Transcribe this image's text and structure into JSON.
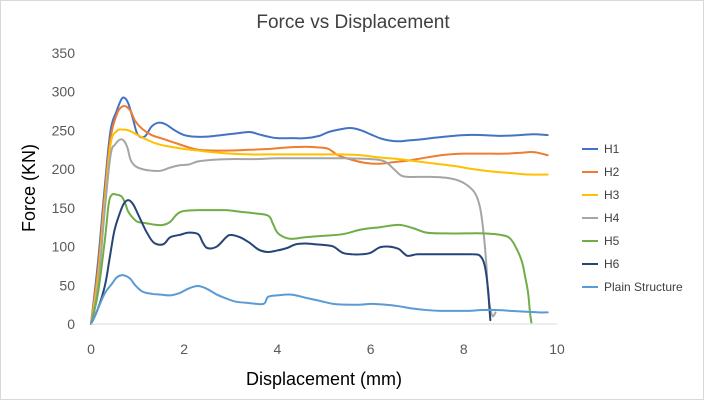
{
  "chart_data": {
    "type": "line",
    "title": "Force vs Displacement",
    "xlabel": "Displacement (mm)",
    "ylabel": "Force (KN)",
    "xlim": [
      0,
      10
    ],
    "ylim": [
      0,
      350
    ],
    "xticks": [
      0,
      2,
      4,
      6,
      8,
      10
    ],
    "yticks": [
      0,
      50,
      100,
      150,
      200,
      250,
      300,
      350
    ],
    "grid": false,
    "legend_position": "right",
    "series": [
      {
        "name": "H1",
        "color": "#4472C4",
        "x": [
          0,
          0.15,
          0.3,
          0.42,
          0.55,
          0.65,
          0.72,
          0.8,
          0.9,
          1.0,
          1.15,
          1.3,
          1.45,
          1.6,
          1.8,
          2.0,
          2.2,
          2.5,
          2.8,
          3.1,
          3.4,
          3.6,
          3.8,
          4.0,
          4.3,
          4.6,
          4.9,
          5.1,
          5.4,
          5.6,
          5.8,
          6.0,
          6.2,
          6.4,
          6.6,
          6.8,
          7.0,
          7.3,
          7.6,
          8.0,
          8.4,
          8.8,
          9.2,
          9.5,
          9.8
        ],
        "y": [
          0,
          80,
          180,
          250,
          275,
          290,
          292,
          285,
          265,
          245,
          242,
          255,
          260,
          258,
          250,
          244,
          242,
          242,
          244,
          246,
          248,
          245,
          242,
          240,
          240,
          240,
          243,
          248,
          252,
          253,
          250,
          245,
          240,
          237,
          236,
          237,
          238,
          240,
          242,
          244,
          244,
          243,
          244,
          245,
          244
        ]
      },
      {
        "name": "H2",
        "color": "#ED7D31",
        "x": [
          0,
          0.15,
          0.3,
          0.42,
          0.55,
          0.65,
          0.75,
          0.85,
          0.95,
          1.1,
          1.3,
          1.5,
          1.7,
          1.9,
          2.1,
          2.3,
          2.6,
          3.0,
          3.4,
          3.8,
          4.2,
          4.6,
          4.9,
          5.1,
          5.3,
          5.6,
          5.9,
          6.2,
          6.5,
          6.8,
          7.1,
          7.4,
          7.7,
          8.0,
          8.3,
          8.6,
          8.9,
          9.2,
          9.5,
          9.8
        ],
        "y": [
          0,
          70,
          170,
          240,
          270,
          280,
          281,
          275,
          262,
          252,
          244,
          240,
          236,
          232,
          228,
          225,
          224,
          224,
          225,
          226,
          228,
          229,
          228,
          226,
          218,
          212,
          208,
          207,
          209,
          211,
          214,
          217,
          219,
          220,
          220,
          220,
          220,
          221,
          222,
          218
        ]
      },
      {
        "name": "H3",
        "color": "#FFC000",
        "x": [
          0,
          0.15,
          0.3,
          0.42,
          0.55,
          0.7,
          0.85,
          1.0,
          1.2,
          1.4,
          1.6,
          1.8,
          2.0,
          2.3,
          2.6,
          3.0,
          3.4,
          3.8,
          4.2,
          4.6,
          5.0,
          5.4,
          5.8,
          6.2,
          6.6,
          7.0,
          7.4,
          7.8,
          8.2,
          8.6,
          9.0,
          9.4,
          9.8
        ],
        "y": [
          0,
          60,
          160,
          232,
          249,
          251,
          249,
          244,
          238,
          233,
          230,
          228,
          226,
          224,
          222,
          220,
          219,
          219,
          219,
          219,
          219,
          219,
          218,
          215,
          213,
          210,
          207,
          204,
          200,
          197,
          195,
          193,
          193
        ]
      },
      {
        "name": "H4",
        "color": "#A5A5A5",
        "x": [
          0,
          0.15,
          0.3,
          0.42,
          0.52,
          0.62,
          0.7,
          0.78,
          0.85,
          0.95,
          1.1,
          1.3,
          1.5,
          1.7,
          1.9,
          2.1,
          2.3,
          2.6,
          3.0,
          3.5,
          4.0,
          4.5,
          5.0,
          5.5,
          6.0,
          6.3,
          6.5,
          6.65,
          6.8,
          7.0,
          7.3,
          7.6,
          7.9,
          8.1,
          8.25,
          8.35,
          8.42,
          8.48,
          8.52,
          8.57,
          8.62,
          8.68
        ],
        "y": [
          0,
          50,
          150,
          218,
          232,
          238,
          237,
          228,
          212,
          204,
          200,
          198,
          198,
          202,
          205,
          206,
          210,
          212,
          213,
          213,
          214,
          214,
          214,
          214,
          213,
          210,
          200,
          192,
          190,
          190,
          190,
          189,
          185,
          178,
          168,
          150,
          120,
          80,
          40,
          20,
          10,
          15
        ]
      },
      {
        "name": "H5",
        "color": "#70AD47",
        "x": [
          0,
          0.15,
          0.3,
          0.38,
          0.45,
          0.55,
          0.65,
          0.72,
          0.8,
          0.9,
          1.0,
          1.2,
          1.4,
          1.55,
          1.7,
          1.85,
          2.0,
          2.3,
          2.6,
          2.9,
          3.2,
          3.5,
          3.8,
          3.9,
          4.0,
          4.15,
          4.3,
          4.6,
          5.0,
          5.4,
          5.8,
          6.2,
          6.6,
          6.9,
          7.2,
          7.6,
          8.0,
          8.4,
          8.8,
          9.0,
          9.15,
          9.25,
          9.32,
          9.38,
          9.42,
          9.45
        ],
        "y": [
          0,
          40,
          110,
          155,
          167,
          167,
          165,
          158,
          145,
          137,
          132,
          130,
          128,
          128,
          132,
          142,
          146,
          147,
          147,
          147,
          145,
          143,
          140,
          130,
          118,
          112,
          110,
          112,
          114,
          116,
          122,
          125,
          128,
          124,
          118,
          117,
          117,
          117,
          115,
          110,
          95,
          80,
          60,
          40,
          15,
          2
        ]
      },
      {
        "name": "H6",
        "color": "#264478",
        "x": [
          0,
          0.15,
          0.3,
          0.4,
          0.5,
          0.6,
          0.7,
          0.8,
          0.9,
          1.0,
          1.1,
          1.2,
          1.35,
          1.55,
          1.7,
          1.9,
          2.1,
          2.3,
          2.4,
          2.5,
          2.7,
          2.9,
          3.0,
          3.2,
          3.4,
          3.6,
          3.8,
          4.0,
          4.2,
          4.4,
          4.6,
          4.8,
          5.0,
          5.2,
          5.4,
          5.6,
          5.8,
          6.0,
          6.2,
          6.4,
          6.6,
          6.7,
          6.8,
          7.0,
          7.3,
          7.6,
          8.0,
          8.2,
          8.35,
          8.45,
          8.52,
          8.55,
          8.57
        ],
        "y": [
          0,
          20,
          50,
          85,
          120,
          140,
          155,
          160,
          155,
          143,
          130,
          118,
          105,
          103,
          112,
          115,
          118,
          116,
          105,
          98,
          100,
          112,
          115,
          112,
          105,
          96,
          93,
          95,
          98,
          103,
          104,
          103,
          102,
          100,
          92,
          90,
          90,
          92,
          99,
          100,
          97,
          92,
          88,
          90,
          90,
          90,
          90,
          90,
          88,
          75,
          45,
          20,
          5
        ]
      },
      {
        "name": "Plain Structure",
        "color": "#5B9BD5",
        "x": [
          0,
          0.15,
          0.3,
          0.45,
          0.55,
          0.65,
          0.75,
          0.85,
          0.95,
          1.1,
          1.3,
          1.5,
          1.7,
          1.9,
          2.1,
          2.3,
          2.5,
          2.7,
          2.9,
          3.1,
          3.4,
          3.7,
          3.8,
          4.0,
          4.3,
          4.6,
          4.9,
          5.2,
          5.5,
          5.8,
          6.0,
          6.3,
          6.6,
          6.9,
          7.2,
          7.5,
          7.8,
          8.1,
          8.4,
          8.7,
          9.0,
          9.3,
          9.6,
          9.8
        ],
        "y": [
          0,
          20,
          40,
          52,
          60,
          63,
          62,
          58,
          50,
          42,
          39,
          38,
          37,
          40,
          46,
          49,
          45,
          38,
          33,
          29,
          27,
          26,
          35,
          37,
          38,
          34,
          30,
          26,
          25,
          25,
          26,
          25,
          23,
          20,
          18,
          17,
          17,
          17,
          18,
          18,
          17,
          16,
          15,
          15
        ]
      }
    ]
  }
}
